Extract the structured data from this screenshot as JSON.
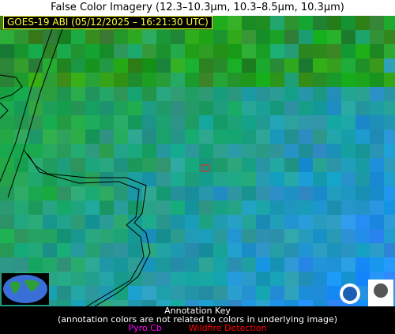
{
  "header": {
    "title": "False Color Imagery (12.3–10.3µm, 10.3–8.5µm, 10.3µm)"
  },
  "image": {
    "label": "GOES-19 ABI (05/12/2025 – 16:21:30 UTC)"
  },
  "key": {
    "title": "Annotation Key",
    "note": "(annotation colors are not related to colors in underlying image)",
    "items": [
      "Pyro Cb",
      "Wildfire Detection"
    ]
  }
}
